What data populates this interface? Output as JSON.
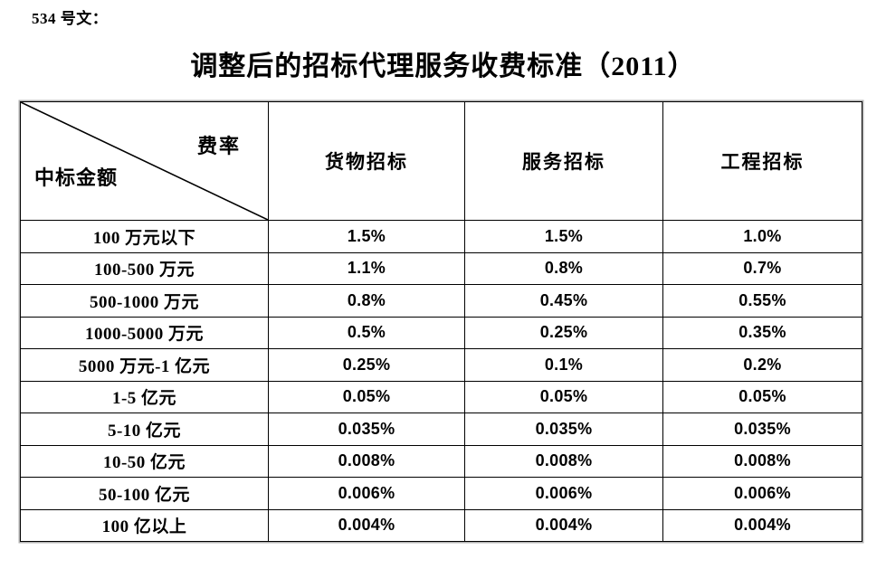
{
  "page": {
    "doc_label": "534 号文：",
    "title": "调整后的招标代理服务收费标准（2011）"
  },
  "table": {
    "corner": {
      "top_right": "费率",
      "bottom_left": "中标金额"
    },
    "columns": [
      "货物招标",
      "服务招标",
      "工程招标"
    ],
    "rows": [
      {
        "label": "100 万元以下",
        "values": [
          "1.5%",
          "1.5%",
          "1.0%"
        ]
      },
      {
        "label": "100-500 万元",
        "values": [
          "1.1%",
          "0.8%",
          "0.7%"
        ]
      },
      {
        "label": "500-1000 万元",
        "values": [
          "0.8%",
          "0.45%",
          "0.55%"
        ]
      },
      {
        "label": "1000-5000 万元",
        "values": [
          "0.5%",
          "0.25%",
          "0.35%"
        ]
      },
      {
        "label": "5000 万元-1 亿元",
        "values": [
          "0.25%",
          "0.1%",
          "0.2%"
        ]
      },
      {
        "label": "1-5 亿元",
        "values": [
          "0.05%",
          "0.05%",
          "0.05%"
        ]
      },
      {
        "label": "5-10 亿元",
        "values": [
          "0.035%",
          "0.035%",
          "0.035%"
        ]
      },
      {
        "label": "10-50 亿元",
        "values": [
          "0.008%",
          "0.008%",
          "0.008%"
        ]
      },
      {
        "label": "50-100 亿元",
        "values": [
          "0.006%",
          "0.006%",
          "0.006%"
        ]
      },
      {
        "label": "100 亿以上",
        "values": [
          "0.004%",
          "0.004%",
          "0.004%"
        ]
      }
    ],
    "colors": {
      "border": "#000000",
      "outer_halo": "#b0b0b0",
      "text": "#000000",
      "background": "#ffffff"
    }
  }
}
